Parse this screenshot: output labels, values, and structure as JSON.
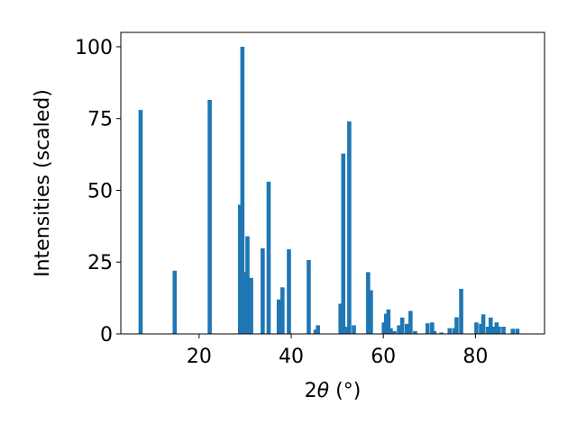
{
  "chart_data": {
    "type": "bar",
    "xlabel_prefix": "2",
    "xlabel_symbol": "θ",
    "xlabel_unit": " (°)",
    "ylabel": "Intensities (scaled)",
    "xlim": [
      3.0,
      95.0
    ],
    "ylim": [
      0,
      105
    ],
    "xticks": [
      20,
      40,
      60,
      80
    ],
    "yticks": [
      0,
      25,
      50,
      75,
      100
    ],
    "bar_width": 0.9,
    "bar_color": "#1f77b4",
    "grid": false,
    "x": [
      7.3,
      14.7,
      22.3,
      28.9,
      29.4,
      29.9,
      30.5,
      31.3,
      33.8,
      35.1,
      37.3,
      38.1,
      39.5,
      43.8,
      45.3,
      45.8,
      50.7,
      51.3,
      52.2,
      52.6,
      53.6,
      56.7,
      57.3,
      60.1,
      60.6,
      61.1,
      61.6,
      62.4,
      63.4,
      64.1,
      65.1,
      65.9,
      66.9,
      69.6,
      70.6,
      71.1,
      72.6,
      74.4,
      75.4,
      75.9,
      76.9,
      80.2,
      81.2,
      81.7,
      82.7,
      83.3,
      83.9,
      84.6,
      85.1,
      86.1,
      88.1,
      89.1
    ],
    "values": [
      78,
      22,
      81.5,
      45,
      100,
      21.5,
      34,
      19.5,
      29.8,
      53,
      12,
      16.2,
      29.5,
      25.7,
      1.5,
      3,
      10.5,
      62.8,
      2.5,
      74,
      3,
      21.5,
      15.2,
      4,
      7,
      8.5,
      2,
      1,
      3,
      5.7,
      3.5,
      8,
      1,
      3.7,
      4,
      1,
      0.5,
      2,
      2,
      5.8,
      15.7,
      4,
      3.5,
      6.8,
      2.5,
      5.7,
      2.5,
      4,
      2.5,
      2.5,
      1.8,
      1.8
    ]
  }
}
